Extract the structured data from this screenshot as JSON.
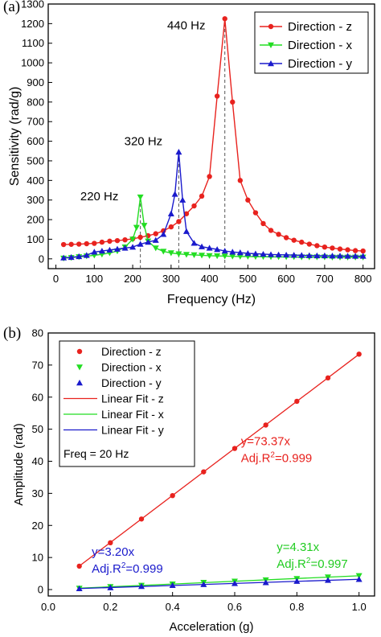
{
  "colors": {
    "z": "#e8221e",
    "x": "#22dd22",
    "y": "#1a1acc",
    "axis": "#000000",
    "guide": "#555555"
  },
  "panel_a": {
    "label": "(a)",
    "annotations": [
      {
        "text": "440 Hz",
        "freq": 440,
        "value": 1235
      },
      {
        "text": "320 Hz",
        "freq": 320,
        "value": 545
      },
      {
        "text": "220 Hz",
        "freq": 220,
        "value": 310
      }
    ]
  },
  "panel_b": {
    "label": "(b)",
    "legend_note": "Freq = 20 Hz",
    "annotations": [
      {
        "line1": "y=73.37x",
        "line2_pre": "Adj.R",
        "line2_sup": "2",
        "line2_post": "=0.999",
        "color": "#e8221e",
        "x": 0.62,
        "y": 45
      },
      {
        "line1": "y=3.20x",
        "line2_pre": "Adj.R",
        "line2_sup": "2",
        "line2_post": "=0.999",
        "color": "#1a1acc",
        "x": 0.14,
        "y": 10.5
      },
      {
        "line1": "y=4.31x",
        "line2_pre": "Adj.R",
        "line2_sup": "2",
        "line2_post": "=0.997",
        "color": "#22cc22",
        "x": 0.735,
        "y": 12
      }
    ]
  },
  "chart_data": [
    {
      "type": "line",
      "xlabel": "Frequency (Hz)",
      "ylabel": "Sensitivity (rad/g)",
      "xlim": [
        -20,
        830
      ],
      "ylim": [
        -50,
        1300
      ],
      "xticks": [
        0,
        100,
        200,
        300,
        400,
        500,
        600,
        700,
        800
      ],
      "yticks": [
        0,
        100,
        200,
        300,
        400,
        500,
        600,
        700,
        800,
        900,
        1000,
        1100,
        1200,
        1300
      ],
      "legend_position": "top-right",
      "series": [
        {
          "name": "Direction - z",
          "color": "#e8221e",
          "marker": "circle",
          "x": [
            20,
            40,
            60,
            80,
            100,
            120,
            140,
            160,
            180,
            200,
            220,
            240,
            260,
            280,
            300,
            320,
            340,
            360,
            380,
            400,
            420,
            440,
            460,
            480,
            500,
            520,
            540,
            560,
            580,
            600,
            620,
            640,
            660,
            680,
            700,
            720,
            740,
            760,
            780,
            800
          ],
          "y": [
            73,
            74,
            75,
            77,
            79,
            85,
            90,
            93,
            97,
            102,
            110,
            118,
            128,
            143,
            163,
            190,
            230,
            270,
            320,
            420,
            830,
            1225,
            800,
            400,
            300,
            235,
            180,
            145,
            125,
            108,
            95,
            85,
            75,
            67,
            60,
            55,
            50,
            46,
            42,
            40
          ]
        },
        {
          "name": "Direction - x",
          "color": "#22dd22",
          "marker": "triangle-down",
          "x": [
            20,
            40,
            60,
            80,
            100,
            120,
            140,
            160,
            180,
            200,
            210,
            220,
            230,
            240,
            260,
            280,
            300,
            320,
            340,
            360,
            380,
            400,
            420,
            440,
            460,
            480,
            500,
            520,
            540,
            560,
            580,
            600,
            620,
            640,
            660,
            680,
            700,
            720,
            740,
            760,
            780,
            800
          ],
          "y": [
            3,
            6,
            10,
            14,
            18,
            23,
            30,
            40,
            60,
            100,
            160,
            315,
            170,
            90,
            55,
            38,
            30,
            25,
            22,
            20,
            18,
            16,
            15,
            14,
            13,
            12,
            12,
            11,
            11,
            10,
            10,
            10,
            10,
            9,
            9,
            9,
            9,
            8,
            8,
            8,
            8,
            8
          ],
          "guide_at": 220
        },
        {
          "name": "Direction - y",
          "color": "#1a1acc",
          "marker": "triangle-up",
          "x": [
            20,
            40,
            60,
            80,
            100,
            120,
            140,
            160,
            180,
            200,
            220,
            240,
            260,
            280,
            300,
            310,
            320,
            330,
            340,
            360,
            380,
            400,
            420,
            440,
            460,
            480,
            500,
            520,
            540,
            560,
            580,
            600,
            620,
            640,
            660,
            680,
            700,
            720,
            740,
            760,
            780,
            800
          ],
          "y": [
            5,
            8,
            12,
            18,
            35,
            40,
            45,
            50,
            55,
            60,
            75,
            85,
            95,
            125,
            230,
            330,
            545,
            300,
            140,
            80,
            62,
            55,
            48,
            40,
            35,
            32,
            28,
            26,
            24,
            22,
            21,
            20,
            19,
            18,
            17,
            16,
            16,
            15,
            15,
            14,
            14,
            14
          ],
          "guide_at": 320
        }
      ],
      "guide_z_at": 440
    },
    {
      "type": "scatter",
      "xlabel": "Acceleration (g)",
      "ylabel": "Amplitude (rad)",
      "xlim": [
        0.0,
        1.05
      ],
      "ylim": [
        -2,
        80
      ],
      "xticks": [
        0.0,
        0.2,
        0.4,
        0.6,
        0.8,
        1.0
      ],
      "yticks": [
        0,
        10,
        20,
        30,
        40,
        50,
        60,
        70,
        80
      ],
      "legend_position": "top-left",
      "series": [
        {
          "name": "Direction - z",
          "color": "#e8221e",
          "marker": "circle",
          "x": [
            0.1,
            0.2,
            0.3,
            0.4,
            0.5,
            0.6,
            0.7,
            0.8,
            0.9,
            1.0
          ],
          "y": [
            7.3,
            14.6,
            22.0,
            29.3,
            36.7,
            44.0,
            51.3,
            58.7,
            66.0,
            73.4
          ]
        },
        {
          "name": "Direction - x",
          "color": "#22dd22",
          "marker": "triangle-down",
          "x": [
            0.1,
            0.2,
            0.3,
            0.4,
            0.5,
            0.6,
            0.7,
            0.8,
            0.9,
            1.0
          ],
          "y": [
            0.4,
            0.9,
            1.3,
            1.7,
            2.2,
            2.6,
            3.0,
            3.4,
            3.9,
            4.3
          ]
        },
        {
          "name": "Direction - y",
          "color": "#1a1acc",
          "marker": "triangle-up",
          "x": [
            0.1,
            0.2,
            0.3,
            0.4,
            0.5,
            0.6,
            0.7,
            0.8,
            0.9,
            1.0
          ],
          "y": [
            0.3,
            0.6,
            1.0,
            1.3,
            1.6,
            1.9,
            2.2,
            2.6,
            2.9,
            3.2
          ]
        }
      ],
      "fits": [
        {
          "name": "Linear Fit - z",
          "color": "#e8221e",
          "slope": 73.37
        },
        {
          "name": "Linear Fit - x",
          "color": "#22dd22",
          "slope": 4.31
        },
        {
          "name": "Linear Fit - y",
          "color": "#1a1acc",
          "slope": 3.2
        }
      ],
      "fit_range": [
        0.1,
        1.0
      ]
    }
  ]
}
